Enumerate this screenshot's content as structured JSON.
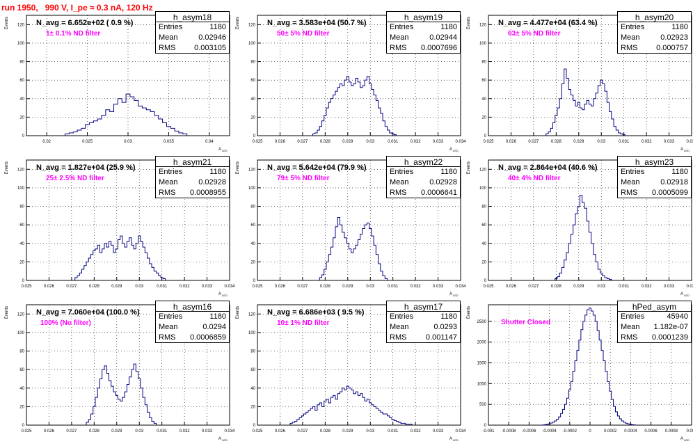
{
  "title": "run 1950,   990 V, I_pe ≈ 0.3 nA, 120 Hz",
  "axis": {
    "ylabel": "Events",
    "xlabel": "A",
    "xlabel_sub": "LED"
  },
  "stat_labels": {
    "entries": "Entries",
    "mean": "Mean",
    "rms": "RMS"
  },
  "panels": [
    {
      "name": "h_asym18",
      "navg": "N_avg = 6.652e+02 ( 0.9 %)",
      "filter": "1± 0.1% ND filter",
      "entries": "1180",
      "mean": "0.02946",
      "rms": "0.003105",
      "xmin": 0.0175,
      "xmax": 0.0425,
      "xticks": [
        0.02,
        0.025,
        0.03,
        0.035,
        0.04
      ],
      "xtick_labels": [
        "0.02",
        "0.025",
        "0.03",
        "0.035",
        "0.04"
      ],
      "ymax": 130,
      "yticks": [
        0,
        20,
        40,
        60,
        80,
        100,
        120
      ],
      "ytick_labels": [
        "0",
        "20",
        "40",
        "60",
        "80",
        "100",
        "120"
      ]
    },
    {
      "name": "h_asym19",
      "navg": "N_avg = 3.583e+04 (50.7 %)",
      "filter": "50± 5% ND filter",
      "entries": "1180",
      "mean": "0.02944",
      "rms": "0.0007696",
      "xmin": 0.025,
      "xmax": 0.034,
      "xticks": [
        0.025,
        0.026,
        0.027,
        0.028,
        0.029,
        0.03,
        0.031,
        0.032,
        0.033,
        0.034
      ],
      "xtick_labels": [
        "0.025",
        "0.026",
        "0.027",
        "0.028",
        "0.029",
        "0.03",
        "0.031",
        "0.032",
        "0.033",
        "0.034"
      ],
      "ymax": 130,
      "yticks": [
        0,
        20,
        40,
        60,
        80,
        100,
        120
      ],
      "ytick_labels": [
        "0",
        "20",
        "40",
        "60",
        "80",
        "100",
        "120"
      ]
    },
    {
      "name": "h_asym20",
      "navg": "N_avg = 4.477e+04 (63.4 %)",
      "filter": "63± 5% ND filter",
      "entries": "1180",
      "mean": "0.02923",
      "rms": "0.000757",
      "xmin": 0.025,
      "xmax": 0.034,
      "xticks": [
        0.025,
        0.026,
        0.027,
        0.028,
        0.029,
        0.03,
        0.031,
        0.032,
        0.033,
        0.034
      ],
      "xtick_labels": [
        "0.025",
        "0.026",
        "0.027",
        "0.028",
        "0.029",
        "0.03",
        "0.031",
        "0.032",
        "0.033",
        "0.034"
      ],
      "ymax": 130,
      "yticks": [
        0,
        20,
        40,
        60,
        80,
        100,
        120
      ],
      "ytick_labels": [
        "0",
        "20",
        "40",
        "60",
        "80",
        "100",
        "120"
      ]
    },
    {
      "name": "h_asym21",
      "navg": "N_avg = 1.827e+04 (25.9 %)",
      "filter": "25± 2.5% ND filter",
      "entries": "1180",
      "mean": "0.02928",
      "rms": "0.0008955",
      "xmin": 0.025,
      "xmax": 0.034,
      "xticks": [
        0.025,
        0.026,
        0.027,
        0.028,
        0.029,
        0.03,
        0.031,
        0.032,
        0.033,
        0.034
      ],
      "xtick_labels": [
        "0.025",
        "0.026",
        "0.027",
        "0.028",
        "0.029",
        "0.03",
        "0.031",
        "0.032",
        "0.033",
        "0.034"
      ],
      "ymax": 130,
      "yticks": [
        0,
        20,
        40,
        60,
        80,
        100,
        120
      ],
      "ytick_labels": [
        "0",
        "20",
        "40",
        "60",
        "80",
        "100",
        "120"
      ]
    },
    {
      "name": "h_asym22",
      "navg": "N_avg = 5.642e+04 (79.9 %)",
      "filter": "79± 5% ND filter",
      "entries": "1180",
      "mean": "0.02928",
      "rms": "0.0006641",
      "xmin": 0.025,
      "xmax": 0.034,
      "xticks": [
        0.025,
        0.026,
        0.027,
        0.028,
        0.029,
        0.03,
        0.031,
        0.032,
        0.033,
        0.034
      ],
      "xtick_labels": [
        "0.025",
        "0.026",
        "0.027",
        "0.028",
        "0.029",
        "0.03",
        "0.031",
        "0.032",
        "0.033",
        "0.034"
      ],
      "ymax": 130,
      "yticks": [
        0,
        20,
        40,
        60,
        80,
        100,
        120
      ],
      "ytick_labels": [
        "0",
        "20",
        "40",
        "60",
        "80",
        "100",
        "120"
      ]
    },
    {
      "name": "h_asym23",
      "navg": "N_avg = 2.864e+04 (40.6 %)",
      "filter": "40± 4% ND filter",
      "entries": "1180",
      "mean": "0.02918",
      "rms": "0.0005099",
      "xmin": 0.025,
      "xmax": 0.034,
      "xticks": [
        0.025,
        0.026,
        0.027,
        0.028,
        0.029,
        0.03,
        0.031,
        0.032,
        0.033,
        0.034
      ],
      "xtick_labels": [
        "0.025",
        "0.026",
        "0.027",
        "0.028",
        "0.029",
        "0.03",
        "0.031",
        "0.032",
        "0.033",
        "0.034"
      ],
      "ymax": 130,
      "yticks": [
        0,
        20,
        40,
        60,
        80,
        100,
        120
      ],
      "ytick_labels": [
        "0",
        "20",
        "40",
        "60",
        "80",
        "100",
        "120"
      ]
    },
    {
      "name": "h_asym16",
      "navg": "N_avg = 7.060e+04 (100.0 %)",
      "filter": "100% (No filter)",
      "entries": "1180",
      "mean": "0.0294",
      "rms": "0.0006859",
      "xmin": 0.025,
      "xmax": 0.034,
      "xticks": [
        0.025,
        0.026,
        0.027,
        0.028,
        0.029,
        0.03,
        0.031,
        0.032,
        0.033,
        0.034
      ],
      "xtick_labels": [
        "0.025",
        "0.026",
        "0.027",
        "0.028",
        "0.029",
        "0.03",
        "0.031",
        "0.032",
        "0.033",
        "0.034"
      ],
      "ymax": 130,
      "yticks": [
        0,
        20,
        40,
        60,
        80,
        100,
        120
      ],
      "ytick_labels": [
        "0",
        "20",
        "40",
        "60",
        "80",
        "100",
        "120"
      ]
    },
    {
      "name": "h_asym17",
      "navg": "N_avg = 6.686e+03 ( 9.5 %)",
      "filter": "10± 1% ND filter",
      "entries": "1180",
      "mean": "0.0293",
      "rms": "0.001147",
      "xmin": 0.025,
      "xmax": 0.034,
      "xticks": [
        0.025,
        0.026,
        0.027,
        0.028,
        0.029,
        0.03,
        0.031,
        0.032,
        0.033,
        0.034
      ],
      "xtick_labels": [
        "0.025",
        "0.026",
        "0.027",
        "0.028",
        "0.029",
        "0.03",
        "0.031",
        "0.032",
        "0.033",
        "0.034"
      ],
      "ymax": 130,
      "yticks": [
        0,
        20,
        40,
        60,
        80,
        100,
        120
      ],
      "ytick_labels": [
        "0",
        "20",
        "40",
        "60",
        "80",
        "100",
        "120"
      ]
    },
    {
      "name": "hPed_asym",
      "navg": "",
      "filter": "Shutter Closed",
      "entries": "45940",
      "mean": "1.182e-07",
      "rms": "0.0001239",
      "xmin": -0.001,
      "xmax": 0.001,
      "xticks": [
        -0.001,
        -0.0008,
        -0.0006,
        -0.0004,
        -0.0002,
        0,
        0.0002,
        0.0004,
        0.0006,
        0.0008,
        0.001
      ],
      "xtick_labels": [
        "-0.001",
        "-0.0008",
        "-0.0006",
        "-0.0004",
        "-0.0002",
        "0",
        "0.0002",
        "0.0004",
        "0.0006",
        "0.0008",
        "0.001"
      ],
      "ymax": 2900,
      "yticks": [
        0,
        500,
        1000,
        1500,
        2000,
        2500
      ],
      "ytick_labels": [
        "0",
        "500",
        "1000",
        "1500",
        "2000",
        "2500"
      ]
    }
  ],
  "chart_data": [
    {
      "type": "histogram",
      "name": "h_asym18",
      "bin_width": 0.0005,
      "ylim": [
        0,
        130
      ],
      "grid": true,
      "x": [
        0.0225,
        0.023,
        0.0235,
        0.024,
        0.0245,
        0.025,
        0.0255,
        0.026,
        0.0265,
        0.027,
        0.0275,
        0.028,
        0.0285,
        0.029,
        0.0295,
        0.03,
        0.0305,
        0.031,
        0.0315,
        0.032,
        0.0325,
        0.033,
        0.0335,
        0.034,
        0.0345,
        0.035,
        0.0355,
        0.036,
        0.0365,
        0.037
      ],
      "y": [
        2,
        3,
        4,
        6,
        8,
        12,
        14,
        16,
        18,
        22,
        28,
        26,
        34,
        40,
        36,
        45,
        42,
        38,
        32,
        30,
        28,
        26,
        22,
        18,
        14,
        10,
        8,
        5,
        3,
        2
      ]
    },
    {
      "type": "histogram",
      "name": "h_asym19",
      "bin_width": 0.0001,
      "ylim": [
        0,
        130
      ],
      "grid": true,
      "x": [
        0.0275,
        0.0276,
        0.0277,
        0.0278,
        0.0279,
        0.028,
        0.0281,
        0.0282,
        0.0283,
        0.0284,
        0.0285,
        0.0286,
        0.0287,
        0.0288,
        0.0289,
        0.029,
        0.0291,
        0.0292,
        0.0293,
        0.0294,
        0.0295,
        0.0296,
        0.0297,
        0.0298,
        0.0299,
        0.03,
        0.0301,
        0.0302,
        0.0303,
        0.0304,
        0.0305,
        0.0306,
        0.0307,
        0.0308,
        0.0309,
        0.031,
        0.0311
      ],
      "y": [
        2,
        3,
        6,
        10,
        16,
        22,
        30,
        36,
        40,
        44,
        48,
        52,
        56,
        54,
        60,
        64,
        58,
        54,
        56,
        62,
        58,
        52,
        54,
        60,
        64,
        56,
        50,
        44,
        38,
        30,
        24,
        16,
        10,
        6,
        3,
        2,
        1
      ]
    },
    {
      "type": "histogram",
      "name": "h_asym20",
      "bin_width": 0.0001,
      "ylim": [
        0,
        130
      ],
      "grid": true,
      "x": [
        0.0276,
        0.0277,
        0.0278,
        0.0279,
        0.028,
        0.0281,
        0.0282,
        0.0283,
        0.0284,
        0.0285,
        0.0286,
        0.0287,
        0.0288,
        0.0289,
        0.029,
        0.0291,
        0.0292,
        0.0293,
        0.0294,
        0.0295,
        0.0296,
        0.0297,
        0.0298,
        0.0299,
        0.03,
        0.0301,
        0.0302,
        0.0303,
        0.0304,
        0.0305,
        0.0306,
        0.0307,
        0.0308,
        0.0309,
        0.031
      ],
      "y": [
        2,
        4,
        8,
        14,
        22,
        30,
        40,
        56,
        72,
        62,
        50,
        44,
        38,
        32,
        36,
        30,
        28,
        34,
        38,
        34,
        32,
        40,
        46,
        54,
        60,
        56,
        48,
        36,
        26,
        18,
        10,
        6,
        3,
        2,
        1
      ]
    },
    {
      "type": "histogram",
      "name": "h_asym21",
      "bin_width": 0.0001,
      "ylim": [
        0,
        130
      ],
      "grid": true,
      "x": [
        0.0272,
        0.0273,
        0.0274,
        0.0275,
        0.0276,
        0.0277,
        0.0278,
        0.0279,
        0.028,
        0.0281,
        0.0282,
        0.0283,
        0.0284,
        0.0285,
        0.0286,
        0.0287,
        0.0288,
        0.0289,
        0.029,
        0.0291,
        0.0292,
        0.0293,
        0.0294,
        0.0295,
        0.0296,
        0.0297,
        0.0298,
        0.0299,
        0.03,
        0.0301,
        0.0302,
        0.0303,
        0.0304,
        0.0305,
        0.0306,
        0.0307,
        0.0308,
        0.0309,
        0.031,
        0.0311
      ],
      "y": [
        3,
        5,
        8,
        12,
        16,
        20,
        24,
        28,
        32,
        34,
        38,
        30,
        34,
        40,
        36,
        42,
        38,
        30,
        34,
        44,
        48,
        40,
        36,
        42,
        46,
        38,
        34,
        40,
        48,
        42,
        36,
        30,
        24,
        18,
        14,
        10,
        8,
        5,
        3,
        2
      ]
    },
    {
      "type": "histogram",
      "name": "h_asym22",
      "bin_width": 0.0001,
      "ylim": [
        0,
        130
      ],
      "grid": true,
      "x": [
        0.0278,
        0.0279,
        0.028,
        0.0281,
        0.0282,
        0.0283,
        0.0284,
        0.0285,
        0.0286,
        0.0287,
        0.0288,
        0.0289,
        0.029,
        0.0291,
        0.0292,
        0.0293,
        0.0294,
        0.0295,
        0.0296,
        0.0297,
        0.0298,
        0.0299,
        0.03,
        0.0301,
        0.0302,
        0.0303,
        0.0304,
        0.0305,
        0.0306,
        0.0307
      ],
      "y": [
        3,
        6,
        12,
        20,
        28,
        36,
        46,
        58,
        68,
        60,
        52,
        46,
        40,
        34,
        30,
        34,
        38,
        44,
        50,
        56,
        60,
        62,
        56,
        48,
        38,
        28,
        18,
        10,
        5,
        2
      ]
    },
    {
      "type": "histogram",
      "name": "h_asym23",
      "bin_width": 0.0001,
      "ylim": [
        0,
        130
      ],
      "grid": true,
      "x": [
        0.028,
        0.0281,
        0.0282,
        0.0283,
        0.0284,
        0.0285,
        0.0286,
        0.0287,
        0.0288,
        0.0289,
        0.029,
        0.0291,
        0.0292,
        0.0293,
        0.0294,
        0.0295,
        0.0296,
        0.0297,
        0.0298,
        0.0299,
        0.03,
        0.0301,
        0.0302,
        0.0303,
        0.0304
      ],
      "y": [
        2,
        4,
        8,
        14,
        22,
        30,
        40,
        50,
        60,
        72,
        80,
        92,
        84,
        78,
        64,
        52,
        40,
        28,
        20,
        12,
        8,
        5,
        3,
        2,
        1
      ]
    },
    {
      "type": "histogram",
      "name": "h_asym16",
      "bin_width": 0.0001,
      "ylim": [
        0,
        130
      ],
      "grid": true,
      "x": [
        0.0277,
        0.0278,
        0.0279,
        0.028,
        0.0281,
        0.0282,
        0.0283,
        0.0284,
        0.0285,
        0.0286,
        0.0287,
        0.0288,
        0.0289,
        0.029,
        0.0291,
        0.0292,
        0.0293,
        0.0294,
        0.0295,
        0.0296,
        0.0297,
        0.0298,
        0.0299,
        0.03,
        0.0301,
        0.0302,
        0.0303,
        0.0304,
        0.0305,
        0.0306,
        0.0307
      ],
      "y": [
        3,
        6,
        12,
        20,
        30,
        40,
        50,
        60,
        64,
        56,
        48,
        42,
        36,
        32,
        28,
        26,
        30,
        36,
        44,
        52,
        60,
        66,
        58,
        50,
        40,
        30,
        22,
        14,
        8,
        4,
        2
      ]
    },
    {
      "type": "histogram",
      "name": "h_asym17",
      "bin_width": 0.0001,
      "ylim": [
        0,
        130
      ],
      "grid": true,
      "x": [
        0.0265,
        0.0266,
        0.0267,
        0.0268,
        0.0269,
        0.027,
        0.0271,
        0.0272,
        0.0273,
        0.0274,
        0.0275,
        0.0276,
        0.0277,
        0.0278,
        0.0279,
        0.028,
        0.0281,
        0.0282,
        0.0283,
        0.0284,
        0.0285,
        0.0286,
        0.0287,
        0.0288,
        0.0289,
        0.029,
        0.0291,
        0.0292,
        0.0293,
        0.0294,
        0.0295,
        0.0296,
        0.0297,
        0.0298,
        0.0299,
        0.03,
        0.0301,
        0.0302,
        0.0303,
        0.0304,
        0.0305,
        0.0306,
        0.0307,
        0.0308,
        0.0309,
        0.031,
        0.0311,
        0.0312,
        0.0313,
        0.0314,
        0.0315,
        0.0316,
        0.0317,
        0.0318
      ],
      "y": [
        2,
        3,
        4,
        6,
        8,
        10,
        12,
        14,
        16,
        18,
        20,
        16,
        22,
        24,
        20,
        26,
        28,
        24,
        30,
        32,
        28,
        34,
        36,
        40,
        38,
        42,
        40,
        38,
        34,
        36,
        32,
        34,
        30,
        26,
        28,
        24,
        22,
        20,
        18,
        16,
        14,
        12,
        12,
        10,
        8,
        6,
        5,
        4,
        3,
        2,
        2,
        1,
        1,
        1
      ]
    },
    {
      "type": "histogram",
      "name": "hPed_asym",
      "bin_width": 2e-05,
      "ylim": [
        0,
        2900
      ],
      "grid": true,
      "x": [
        -0.00046,
        -0.00044,
        -0.00042,
        -0.0004,
        -0.00038,
        -0.00036,
        -0.00034,
        -0.00032,
        -0.0003,
        -0.00028,
        -0.00026,
        -0.00024,
        -0.00022,
        -0.0002,
        -0.00018,
        -0.00016,
        -0.00014,
        -0.00012,
        -0.0001,
        -8e-05,
        -6e-05,
        -4e-05,
        -2e-05,
        0,
        2e-05,
        4e-05,
        6e-05,
        8e-05,
        0.0001,
        0.00012,
        0.00014,
        0.00016,
        0.00018,
        0.0002,
        0.00022,
        0.00024,
        0.00026,
        0.00028,
        0.0003,
        0.00032,
        0.00034,
        0.00036,
        0.00038,
        0.0004,
        0.00042,
        0.00044
      ],
      "y": [
        5,
        10,
        20,
        30,
        50,
        70,
        100,
        140,
        200,
        280,
        380,
        500,
        650,
        850,
        1050,
        1300,
        1550,
        1800,
        2050,
        2300,
        2500,
        2650,
        2780,
        2820,
        2750,
        2650,
        2500,
        2280,
        2050,
        1800,
        1550,
        1300,
        1050,
        820,
        620,
        450,
        320,
        220,
        150,
        100,
        70,
        45,
        30,
        20,
        10,
        5
      ]
    }
  ]
}
